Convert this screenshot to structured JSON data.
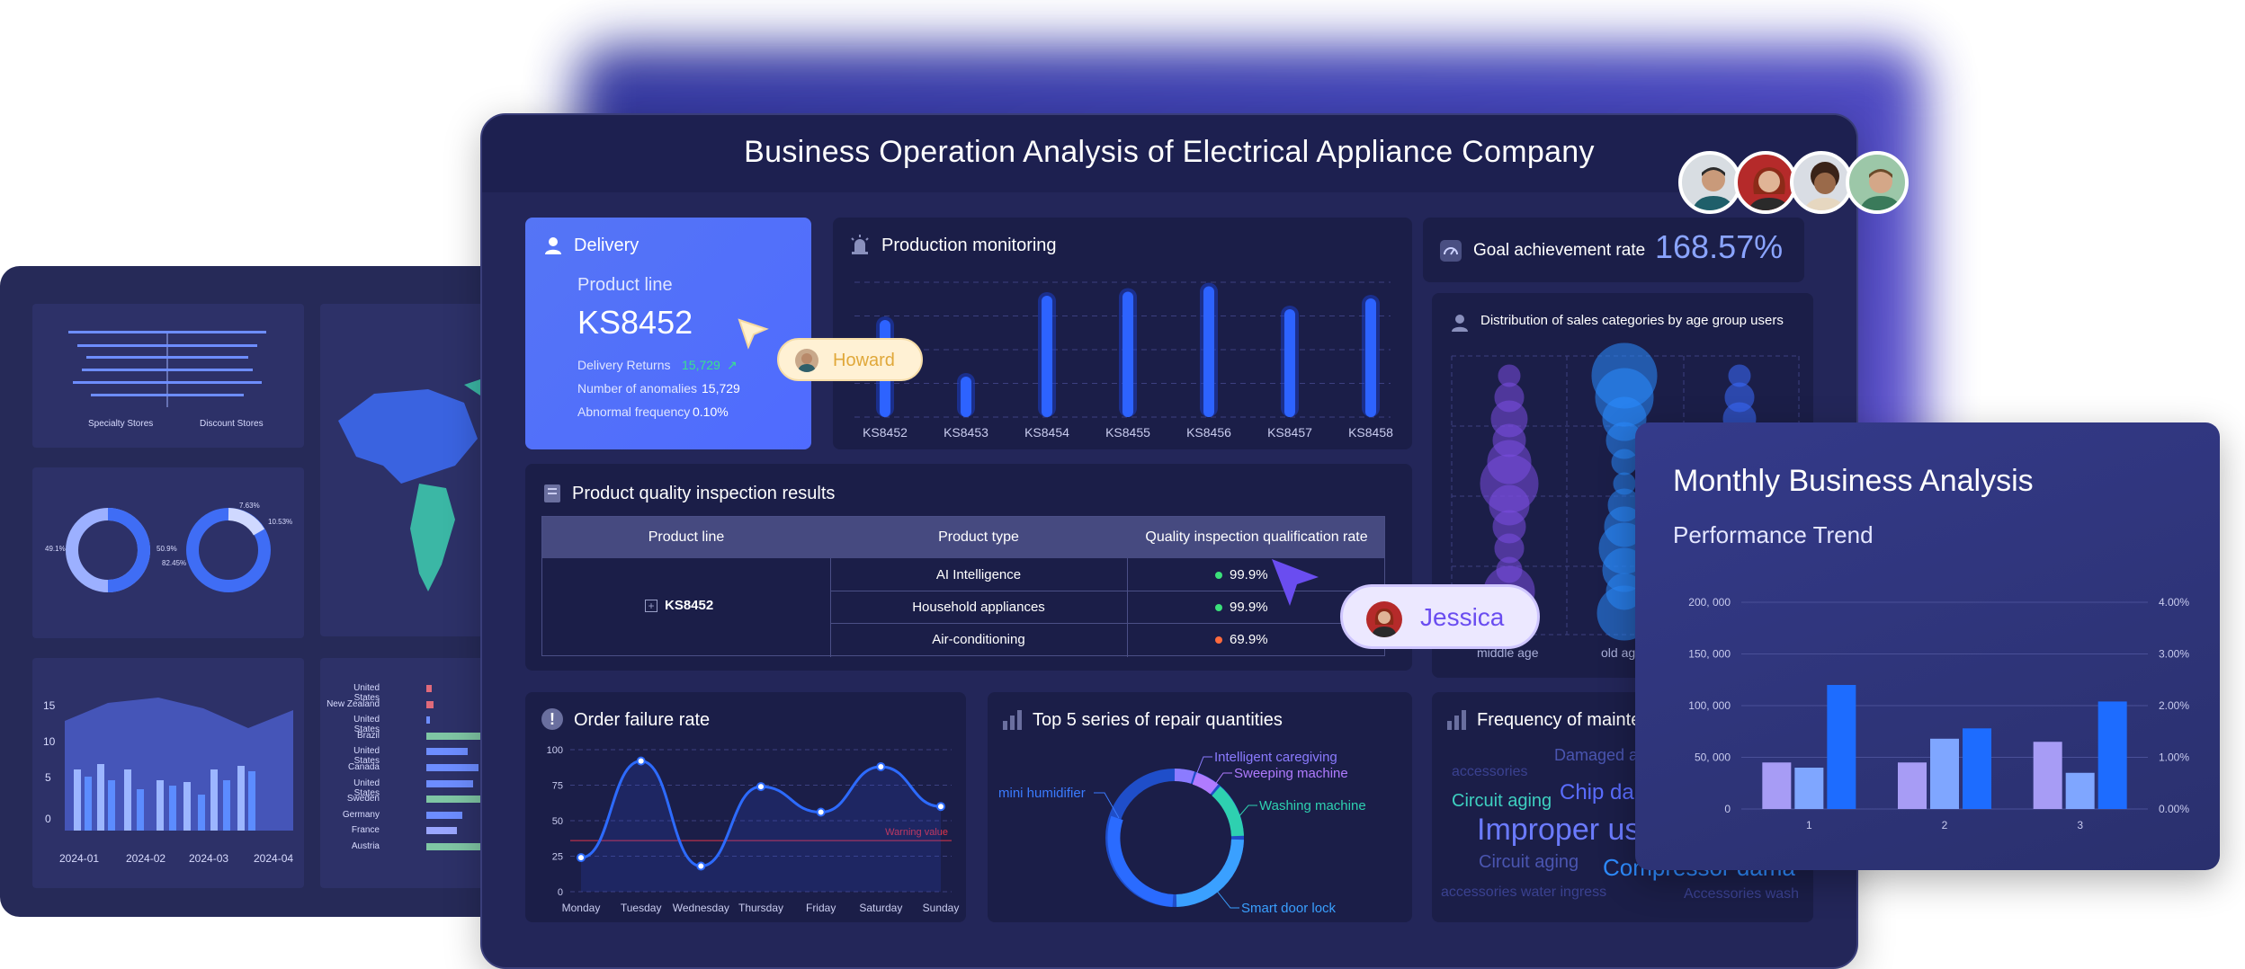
{
  "left_dashboard": {
    "panel1_labels": [
      "Specialty Stores",
      "Discount Stores"
    ],
    "donut_labels": [
      "49.1%",
      "50.9%",
      "7.63%",
      "10.53%",
      "82.45%"
    ],
    "combo_y_ticks": [
      "15",
      "10",
      "5",
      "0"
    ],
    "combo_x_ticks": [
      "2024-01",
      "2024-02",
      "2024-03",
      "2024-04"
    ],
    "country_labels": [
      "United States",
      "New Zealand",
      "United States",
      "Brazil",
      "United States",
      "Canada",
      "United States",
      "Sweden",
      "Germany",
      "France",
      "Austria"
    ]
  },
  "main": {
    "title": "Business Operation Analysis of Electrical Appliance Company",
    "delivery": {
      "header": "Delivery",
      "product_line_label": "Product line",
      "product_line_value": "KS8452",
      "rows": [
        {
          "label": "Delivery Returns",
          "value": "15,729"
        },
        {
          "label": "Number of anomalies",
          "value": "15,729"
        },
        {
          "label": "Abnormal frequency",
          "value": "0.10%"
        }
      ]
    },
    "production": {
      "title": "Production monitoring",
      "categories": [
        "KS8452",
        "KS8453",
        "KS8454",
        "KS8455",
        "KS8456",
        "KS8457",
        "KS8458"
      ],
      "values": [
        0.72,
        0.3,
        0.9,
        0.93,
        0.97,
        0.8,
        0.88
      ]
    },
    "goal": {
      "label": "Goal achievement rate",
      "value": "168.57%"
    },
    "distribution": {
      "title": "Distribution of sales categories by age group users",
      "x_labels": [
        "middle age",
        "old ag"
      ]
    },
    "quality": {
      "title": "Product quality inspection results",
      "headers": [
        "Product line",
        "Product type",
        "Quality inspection qualification rate"
      ],
      "product_line": "KS8452",
      "rows": [
        {
          "type": "AI Intelligence",
          "rate": "99.9%",
          "color": "#3be07a"
        },
        {
          "type": "Household appliances",
          "rate": "99.9%",
          "color": "#3be07a"
        },
        {
          "type": "Air-conditioning",
          "rate": "69.9%",
          "color": "#ff6a3d"
        }
      ]
    },
    "order_failure": {
      "title": "Order failure rate",
      "y_ticks": [
        "100",
        "75",
        "50",
        "25",
        "0"
      ],
      "days": [
        "Monday",
        "Tuesday",
        "Wednesday",
        "Thursday",
        "Friday",
        "Saturday",
        "Sunday"
      ],
      "values": [
        24,
        92,
        18,
        74,
        56,
        88,
        60
      ],
      "warning_label": "Warning value",
      "warning_value": 36
    },
    "repair": {
      "title": "Top 5 series of repair quantities",
      "labels": [
        {
          "text": "Intelligent caregiving",
          "color": "#8b7bff"
        },
        {
          "text": "Sweeping machine",
          "color": "#b07bff"
        },
        {
          "text": "Washing machine",
          "color": "#2ed0b0"
        },
        {
          "text": "Smart door lock",
          "color": "#3aa0ff"
        },
        {
          "text": "mini humidifier",
          "color": "#3a7bff"
        }
      ]
    },
    "frequency": {
      "title": "Frequency of mainte",
      "words": [
        "Damaged ac",
        "accessories",
        "Circuit aging",
        "Chip da",
        "Improper us",
        "Circuit aging",
        "Compressor dama",
        "accessories water ingress",
        "Accessories wash"
      ]
    }
  },
  "cursors": {
    "howard": "Howard",
    "jessica": "Jessica"
  },
  "monthly": {
    "title": "Monthly Business Analysis",
    "subtitle": "Performance Trend"
  },
  "chart_data": {
    "type": "bar",
    "title": "Performance Trend",
    "categories": [
      "1",
      "2",
      "3"
    ],
    "series": [
      {
        "name": "",
        "values": [
          45000,
          45000,
          65000
        ],
        "color": "#a79cf5"
      },
      {
        "name": "",
        "values": [
          40000,
          68000,
          35000
        ],
        "color": "#7fa6ff"
      },
      {
        "name": "",
        "values": [
          120000,
          78000,
          104000
        ],
        "color": "#1d6cff"
      }
    ],
    "y_ticks": [
      "200, 000",
      "150, 000",
      "100, 000",
      "50, 000",
      "0"
    ],
    "y2_ticks": [
      "4.00%",
      "3.00%",
      "2.00%",
      "1.00%",
      "0.00%"
    ],
    "ylim": [
      0,
      200000
    ]
  }
}
